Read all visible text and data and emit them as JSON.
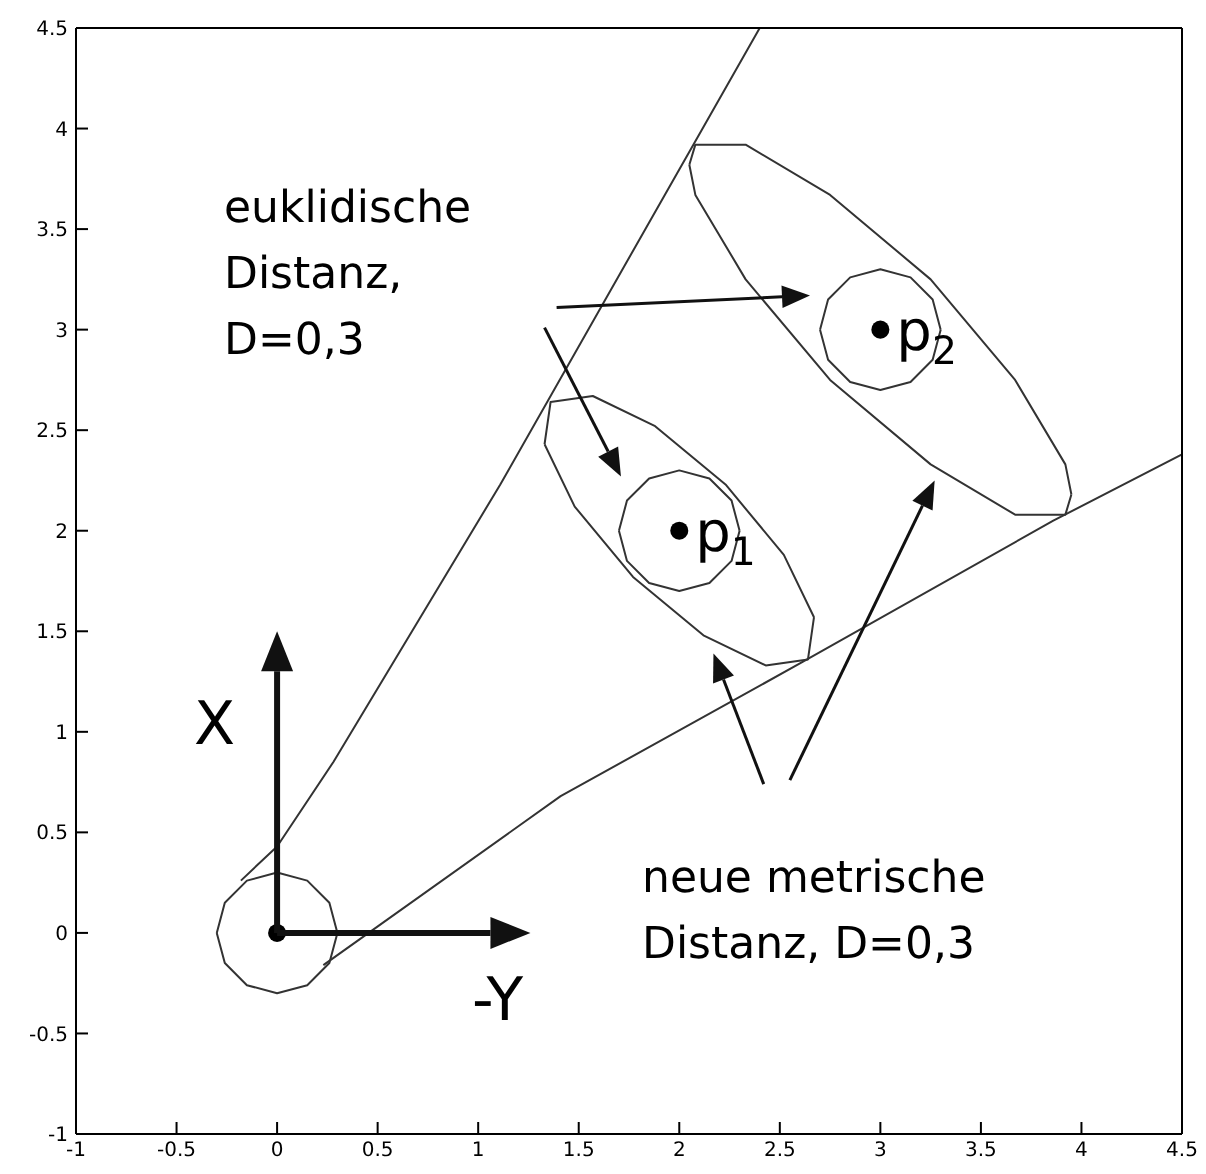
{
  "chart_data": {
    "type": "line",
    "xlim": [
      -1,
      4.5
    ],
    "ylim": [
      -1,
      4.5
    ],
    "xticks": [
      -1,
      -0.5,
      0,
      0.5,
      1,
      1.5,
      2,
      2.5,
      3,
      3.5,
      4,
      4.5
    ],
    "yticks": [
      -1,
      -0.5,
      0,
      0.5,
      1,
      1.5,
      2,
      2.5,
      3,
      3.5,
      4,
      4.5
    ],
    "grid": false,
    "legend": false,
    "line_style": "solid",
    "marker": "none",
    "annotations": [
      "euklidische Distanz, D=0,3",
      "neue metrische Distanz, D=0,3",
      {
        "text": "X",
        "x": 0,
        "y": 0
      },
      {
        "text": "-Y",
        "x": 0,
        "y": 0
      },
      {
        "text": "p$_{1}$",
        "x": 2,
        "y": 2
      },
      {
        "text": "p$_{2}$",
        "x": 3,
        "y": 3
      }
    ],
    "series": [
      {
        "color": "#333333",
        "x": [
          -0.18,
          0,
          0.28,
          1.11,
          2.07,
          2.4
        ],
        "values": [
          0.26,
          0.43,
          0.85,
          2.23,
          3.92,
          4.5
        ]
      },
      {
        "color": "#333333",
        "x": [
          0.23,
          1.41,
          2.6,
          3.86,
          4.5
        ],
        "values": [
          -0.16,
          0.68,
          1.34,
          2.05,
          2.38
        ]
      },
      {
        "color": "#333333",
        "x": [
          -0.3,
          -0.26,
          -0.15,
          0,
          0.15,
          0.26,
          0.3
        ],
        "values": [
          0,
          0.15,
          0.26,
          0.3,
          0.26,
          0.15,
          0
        ]
      },
      {
        "color": "#333333",
        "x": [
          -0.3,
          -0.26,
          -0.15,
          0,
          0.15,
          0.26,
          0.3
        ],
        "values": [
          0,
          -0.15,
          -0.26,
          -0.3,
          -0.26,
          -0.15,
          0
        ]
      },
      {
        "color": "#333333",
        "x": [
          1.7,
          1.74,
          1.85,
          2,
          2.15,
          2.26,
          2.3
        ],
        "values": [
          2,
          2.15,
          2.26,
          2.3,
          2.26,
          2.15,
          2
        ]
      },
      {
        "color": "#333333",
        "x": [
          1.7,
          1.74,
          1.85,
          2,
          2.15,
          2.26,
          2.3
        ],
        "values": [
          2,
          1.85,
          1.74,
          1.7,
          1.74,
          1.85,
          2
        ]
      },
      {
        "color": "#333333",
        "x": [
          2.7,
          2.74,
          2.85,
          3,
          3.15,
          3.26,
          3.3
        ],
        "values": [
          3,
          3.15,
          3.26,
          3.3,
          3.26,
          3.15,
          3
        ]
      },
      {
        "color": "#333333",
        "x": [
          2.7,
          2.74,
          2.85,
          3,
          3.15,
          3.26,
          3.3
        ],
        "values": [
          3,
          2.85,
          2.74,
          2.7,
          2.74,
          2.85,
          3
        ]
      },
      {
        "color": "#333333",
        "x": [
          1.33,
          1.36,
          1.57,
          1.88,
          2.23,
          2.52,
          2.67
        ],
        "values": [
          2.43,
          2.64,
          2.67,
          2.52,
          2.23,
          1.88,
          1.57
        ]
      },
      {
        "color": "#333333",
        "x": [
          1.33,
          1.48,
          1.77,
          2.12,
          2.43,
          2.64,
          2.67
        ],
        "values": [
          2.43,
          2.12,
          1.77,
          1.48,
          1.33,
          1.36,
          1.57
        ]
      },
      {
        "color": "#333333",
        "x": [
          2.05,
          2.08,
          2.33,
          2.75,
          3.25,
          3.67,
          3.92,
          3.95
        ],
        "values": [
          3.82,
          3.92,
          3.92,
          3.67,
          3.25,
          2.75,
          2.33,
          2.18
        ]
      },
      {
        "color": "#333333",
        "x": [
          2.05,
          2.08,
          2.33,
          2.75,
          3.25,
          3.67,
          3.92,
          3.95
        ],
        "values": [
          3.82,
          3.67,
          3.25,
          2.75,
          2.33,
          2.08,
          2.08,
          2.18
        ]
      },
      {
        "type": "scatter",
        "color": "#000000",
        "marker": "circle",
        "x": [
          0,
          2,
          3
        ],
        "values": [
          0,
          2,
          3
        ]
      }
    ]
  }
}
